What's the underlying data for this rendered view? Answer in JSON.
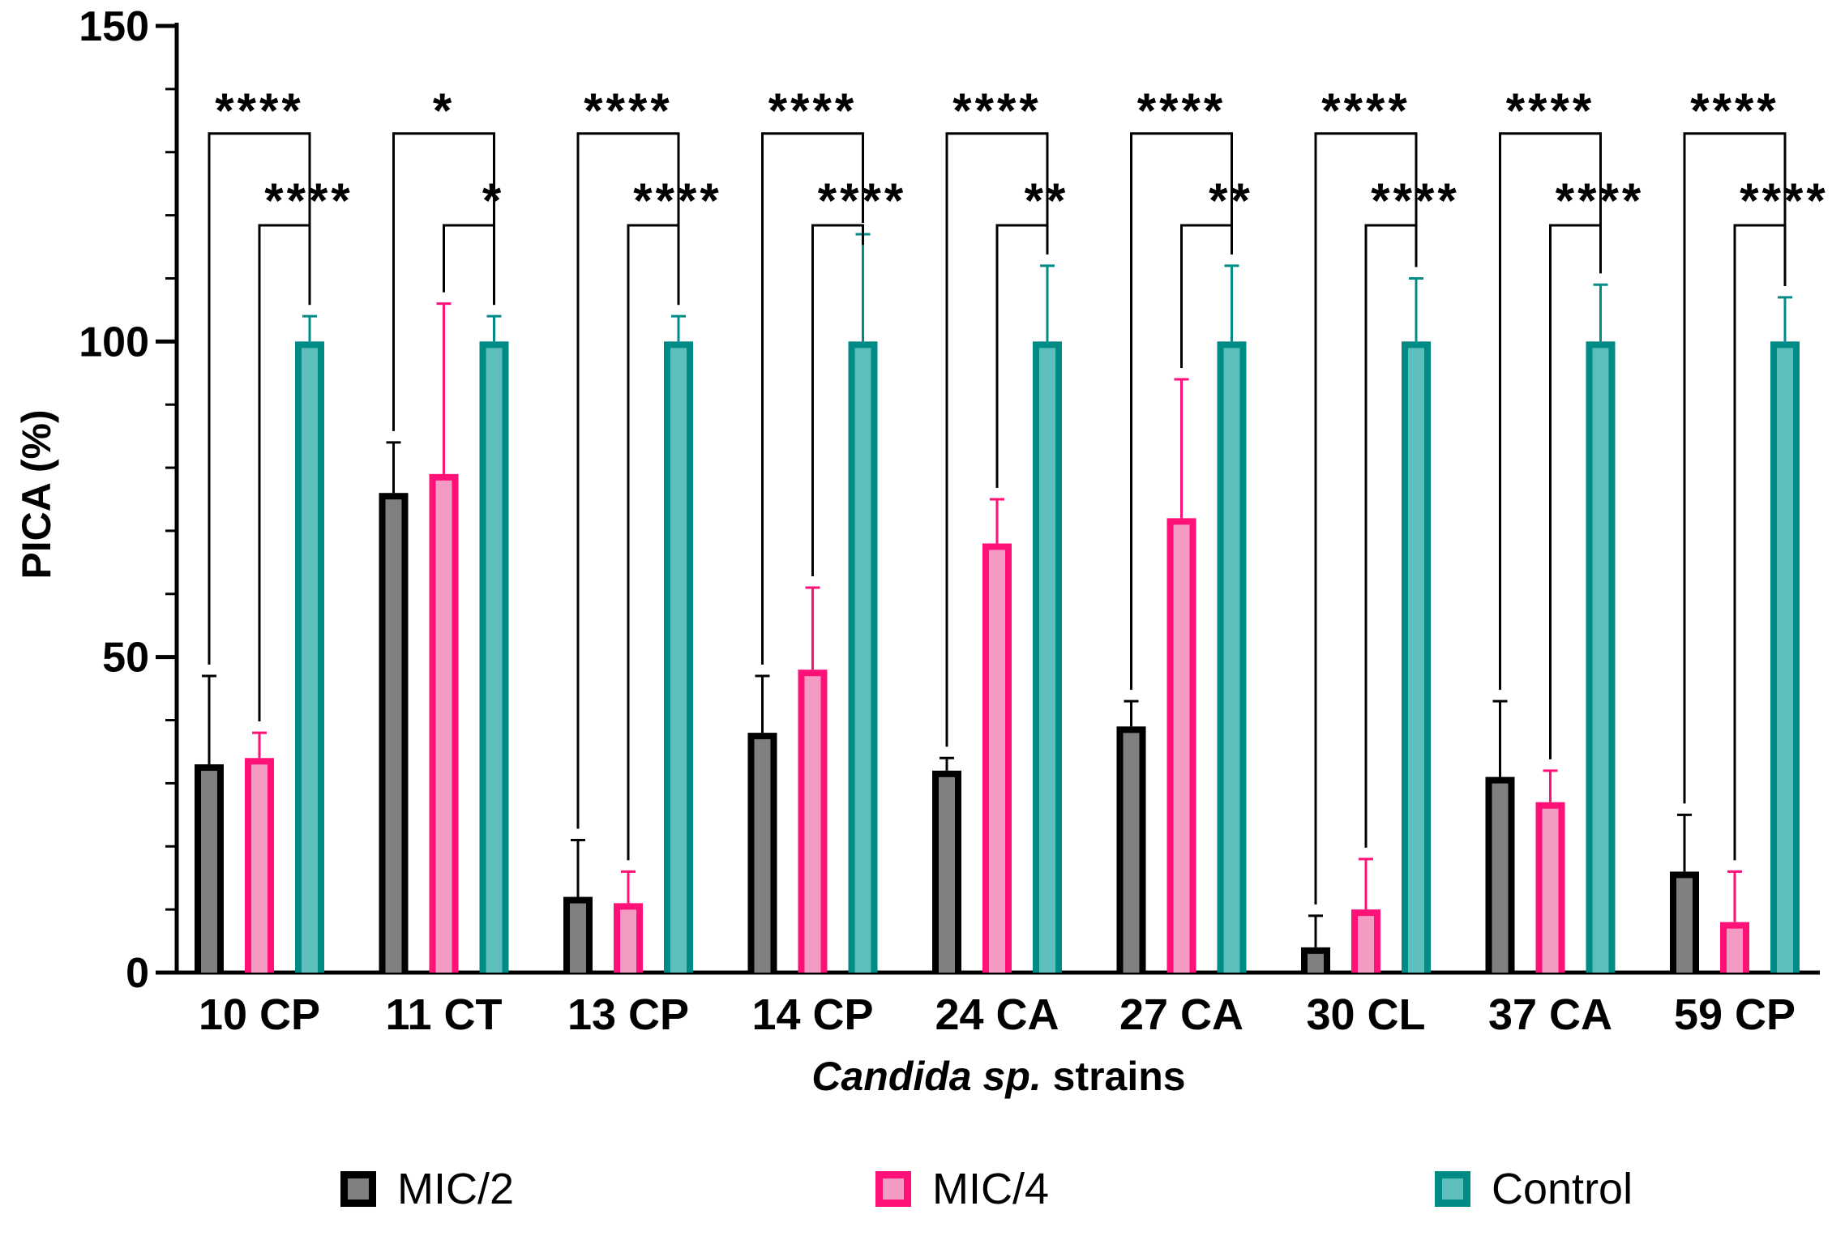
{
  "chart_data": {
    "type": "bar",
    "title": "",
    "xlabel_italic": "Candida sp.",
    "xlabel_rest": " strains",
    "ylabel": "PICA (%)",
    "ylim": [
      0,
      150
    ],
    "yticks": [
      0,
      50,
      100,
      150
    ],
    "categories": [
      "10 CP",
      "11 CT",
      "13 CP",
      "14 CP",
      "24 CA",
      "27 CA",
      "30 CL",
      "37 CA",
      "59 CP"
    ],
    "series": [
      {
        "name": "MIC/2",
        "color": "#808080",
        "edge": "#000000",
        "values": [
          33,
          76,
          12,
          38,
          32,
          39,
          4,
          31,
          16
        ],
        "errors": [
          14,
          8,
          9,
          9,
          2,
          4,
          5,
          12,
          9
        ]
      },
      {
        "name": "MIC/4",
        "color": "#f39bc3",
        "edge": "#ff1177",
        "values": [
          34,
          79,
          11,
          48,
          68,
          72,
          10,
          27,
          8
        ],
        "errors": [
          4,
          27,
          5,
          13,
          7,
          22,
          8,
          5,
          8
        ]
      },
      {
        "name": "Control",
        "color": "#5cbfbb",
        "edge": "#008b87",
        "values": [
          100,
          100,
          100,
          100,
          100,
          100,
          100,
          100,
          100
        ],
        "errors": [
          4,
          4,
          4,
          17,
          12,
          12,
          10,
          9,
          7
        ]
      }
    ],
    "significance": [
      {
        "category": "10 CP",
        "outer": "****",
        "inner": "****"
      },
      {
        "category": "11 CT",
        "outer": "*",
        "inner": "*"
      },
      {
        "category": "13 CP",
        "outer": "****",
        "inner": "****"
      },
      {
        "category": "14 CP",
        "outer": "****",
        "inner": "****"
      },
      {
        "category": "24 CA",
        "outer": "****",
        "inner": "**"
      },
      {
        "category": "27 CA",
        "outer": "****",
        "inner": "**"
      },
      {
        "category": "30 CL",
        "outer": "****",
        "inner": "****"
      },
      {
        "category": "37 CA",
        "outer": "****",
        "inner": "****"
      },
      {
        "category": "59 CP",
        "outer": "****",
        "inner": "****"
      }
    ],
    "legend": [
      "MIC/2",
      "MIC/4",
      "Control"
    ],
    "legend_position": "bottom"
  }
}
